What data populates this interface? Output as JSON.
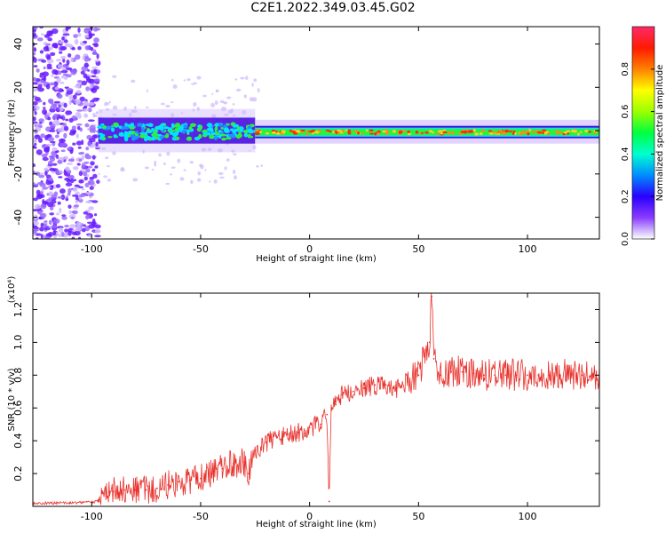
{
  "title": "C2E1.2022.349.03.45.G02",
  "colors": {
    "snr_line": "#e8322d",
    "spectrum_low": "#cfb8ff",
    "spectrum_violet": "#6a1bff",
    "spectrum_cyan": "#00e5ff",
    "spectrum_green": "#2df03d",
    "spectrum_red": "#ff2a18"
  },
  "chart_data": [
    {
      "type": "heatmap",
      "title": "",
      "xlabel": "Height of straight line (km)",
      "ylabel": "Frequency (Hz)",
      "xlim": [
        -127,
        133
      ],
      "ylim": [
        -50,
        48
      ],
      "x_ticks": [
        -100,
        -50,
        0,
        50,
        100
      ],
      "y_ticks": [
        -40,
        -20,
        0,
        20,
        40
      ],
      "grid": false,
      "colorbar": {
        "label": "Normalized spectral amplitude",
        "range": [
          0,
          1
        ],
        "ticks": [
          "0.0",
          "0.2",
          "0.4",
          "0.6",
          "0.8"
        ],
        "colormap": "rainbow"
      },
      "series": [
        {
          "x_range": [
            -127,
            -97
          ],
          "y_range": [
            -50,
            48
          ],
          "amplitude": 0.15
        },
        {
          "x_range": [
            -97,
            -25
          ],
          "y_range": [
            -6,
            6
          ],
          "amplitude": 0.45
        },
        {
          "x_range": [
            -25,
            133
          ],
          "y_range": [
            -3,
            2
          ],
          "amplitude": 0.75
        }
      ]
    },
    {
      "type": "line",
      "title": "",
      "xlabel": "Height of straight line (km)",
      "ylabel": "SNR (10 * v/v)",
      "y_scale_label": "(x10⁴)",
      "xlim": [
        -127,
        133
      ],
      "ylim": [
        0,
        1.3
      ],
      "x_ticks": [
        -100,
        -50,
        0,
        50,
        100
      ],
      "y_ticks": [
        "0.2",
        "0.4",
        "0.6",
        "0.8",
        "1.0",
        "1.2"
      ],
      "grid": false,
      "series": [
        {
          "name": "",
          "x": [
            -127,
            -110,
            -97,
            -95,
            -90,
            -85,
            -80,
            -75,
            -70,
            -65,
            -60,
            -55,
            -50,
            -45,
            -40,
            -35,
            -30,
            -28,
            -25,
            -20,
            -15,
            -10,
            -5,
            0,
            5,
            8,
            9,
            10,
            12,
            15,
            20,
            25,
            30,
            35,
            40,
            45,
            50,
            55,
            56,
            57,
            60,
            65,
            70,
            75,
            80,
            85,
            90,
            95,
            100,
            105,
            110,
            115,
            120,
            125,
            133
          ],
          "y": [
            0.02,
            0.02,
            0.03,
            0.08,
            0.09,
            0.1,
            0.1,
            0.1,
            0.11,
            0.13,
            0.15,
            0.16,
            0.17,
            0.2,
            0.23,
            0.26,
            0.27,
            0.2,
            0.34,
            0.39,
            0.42,
            0.44,
            0.45,
            0.48,
            0.5,
            0.56,
            0.03,
            0.6,
            0.62,
            0.68,
            0.7,
            0.72,
            0.74,
            0.74,
            0.72,
            0.76,
            0.8,
            1.0,
            1.28,
            0.9,
            0.8,
            0.82,
            0.82,
            0.81,
            0.8,
            0.8,
            0.8,
            0.8,
            0.8,
            0.8,
            0.8,
            0.8,
            0.8,
            0.8,
            0.8
          ]
        }
      ]
    }
  ]
}
